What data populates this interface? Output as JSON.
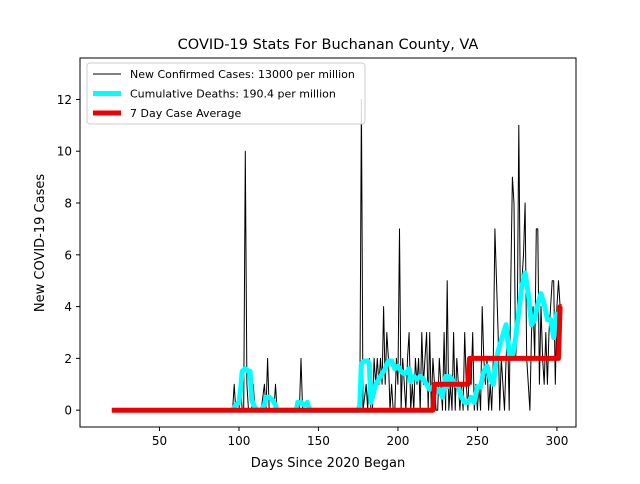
{
  "chart_data": {
    "type": "line",
    "title": "COVID-19 Stats For Buchanan County, VA",
    "xlabel": "Days Since 2020 Began",
    "ylabel": "New COVID-19 Cases",
    "xlim": [
      0,
      312
    ],
    "ylim": [
      -0.65,
      13.6
    ],
    "x_ticks": [
      50,
      100,
      150,
      200,
      250,
      300
    ],
    "y_ticks": [
      0,
      2,
      4,
      6,
      8,
      10,
      12
    ],
    "legend_position": "top-left",
    "grid": false,
    "series": [
      {
        "name": "New Confirmed Cases: 13000 per million",
        "color": "#000000",
        "stroke_width": 1,
        "points": [
          [
            20,
            0
          ],
          [
            96,
            0
          ],
          [
            97,
            1
          ],
          [
            98,
            0
          ],
          [
            100,
            0
          ],
          [
            101,
            1
          ],
          [
            102,
            0
          ],
          [
            103,
            0
          ],
          [
            104,
            10
          ],
          [
            105,
            1
          ],
          [
            106,
            0
          ],
          [
            108,
            0
          ],
          [
            109,
            1
          ],
          [
            110,
            0
          ],
          [
            112,
            0
          ],
          [
            114,
            0
          ],
          [
            116,
            1
          ],
          [
            117,
            0
          ],
          [
            118,
            2
          ],
          [
            119,
            0
          ],
          [
            120,
            0
          ],
          [
            122,
            0
          ],
          [
            123,
            1
          ],
          [
            124,
            0
          ],
          [
            126,
            0
          ],
          [
            138,
            0
          ],
          [
            139,
            2
          ],
          [
            140,
            0
          ],
          [
            142,
            0
          ],
          [
            176,
            0
          ],
          [
            177,
            12
          ],
          [
            178,
            0
          ],
          [
            180,
            1
          ],
          [
            181,
            0
          ],
          [
            182,
            2
          ],
          [
            183,
            0
          ],
          [
            184,
            0
          ],
          [
            185,
            2
          ],
          [
            186,
            1
          ],
          [
            187,
            2
          ],
          [
            188,
            1
          ],
          [
            189,
            2
          ],
          [
            190,
            1
          ],
          [
            191,
            4
          ],
          [
            192,
            1
          ],
          [
            193,
            3
          ],
          [
            194,
            2
          ],
          [
            195,
            0
          ],
          [
            196,
            1
          ],
          [
            197,
            0
          ],
          [
            198,
            0
          ],
          [
            199,
            2
          ],
          [
            200,
            1
          ],
          [
            201,
            7
          ],
          [
            202,
            0
          ],
          [
            203,
            2
          ],
          [
            204,
            1
          ],
          [
            205,
            0
          ],
          [
            206,
            2
          ],
          [
            207,
            3
          ],
          [
            208,
            0
          ],
          [
            209,
            1
          ],
          [
            210,
            0
          ],
          [
            211,
            2
          ],
          [
            212,
            1
          ],
          [
            213,
            2
          ],
          [
            214,
            0
          ],
          [
            215,
            3
          ],
          [
            216,
            1
          ],
          [
            217,
            2
          ],
          [
            218,
            3
          ],
          [
            219,
            0
          ],
          [
            220,
            3
          ],
          [
            221,
            0
          ],
          [
            222,
            2
          ],
          [
            223,
            1
          ],
          [
            224,
            0
          ],
          [
            225,
            0
          ],
          [
            226,
            2
          ],
          [
            227,
            1
          ],
          [
            228,
            0
          ],
          [
            229,
            3
          ],
          [
            230,
            0
          ],
          [
            231,
            5
          ],
          [
            232,
            0
          ],
          [
            233,
            1
          ],
          [
            234,
            0
          ],
          [
            235,
            3
          ],
          [
            236,
            0
          ],
          [
            237,
            2
          ],
          [
            238,
            1
          ],
          [
            239,
            0
          ],
          [
            240,
            1
          ],
          [
            241,
            0
          ],
          [
            242,
            3
          ],
          [
            243,
            1
          ],
          [
            244,
            0
          ],
          [
            245,
            2
          ],
          [
            246,
            1
          ],
          [
            247,
            3
          ],
          [
            248,
            0
          ],
          [
            249,
            1
          ],
          [
            250,
            0
          ],
          [
            251,
            1
          ],
          [
            252,
            0
          ],
          [
            253,
            4
          ],
          [
            254,
            2
          ],
          [
            255,
            1
          ],
          [
            256,
            2
          ],
          [
            257,
            0
          ],
          [
            258,
            1
          ],
          [
            259,
            0
          ],
          [
            260,
            2
          ],
          [
            261,
            7
          ],
          [
            262,
            5
          ],
          [
            263,
            3
          ],
          [
            264,
            0
          ],
          [
            265,
            2
          ],
          [
            266,
            1
          ],
          [
            267,
            0
          ],
          [
            268,
            2
          ],
          [
            269,
            3
          ],
          [
            270,
            0
          ],
          [
            271,
            5
          ],
          [
            272,
            9
          ],
          [
            273,
            8
          ],
          [
            274,
            2
          ],
          [
            275,
            3
          ],
          [
            276,
            11
          ],
          [
            277,
            4
          ],
          [
            278,
            5
          ],
          [
            279,
            6
          ],
          [
            280,
            8
          ],
          [
            281,
            2
          ],
          [
            282,
            1
          ],
          [
            283,
            0
          ],
          [
            284,
            3
          ],
          [
            285,
            4
          ],
          [
            286,
            2
          ],
          [
            287,
            7
          ],
          [
            288,
            7
          ],
          [
            289,
            1
          ],
          [
            290,
            4
          ],
          [
            291,
            2
          ],
          [
            292,
            1
          ],
          [
            293,
            3
          ],
          [
            294,
            1
          ],
          [
            295,
            3
          ],
          [
            296,
            4
          ],
          [
            297,
            5
          ],
          [
            298,
            5
          ],
          [
            299,
            1
          ],
          [
            300,
            4
          ],
          [
            301,
            5
          ],
          [
            302,
            4
          ],
          [
            303,
            4
          ]
        ]
      },
      {
        "name": "Cumulative Deaths: 190.4 per million",
        "color": "#00ffff",
        "stroke_width": 5,
        "points": [
          [
            96,
            0
          ],
          [
            98,
            0.2
          ],
          [
            100,
            0.3
          ],
          [
            101,
            0.8
          ],
          [
            102,
            1.5
          ],
          [
            104,
            1.6
          ],
          [
            106,
            1.5
          ],
          [
            107,
            1.5
          ],
          [
            108,
            0.4
          ],
          [
            110,
            0.1
          ],
          [
            112,
            0
          ],
          [
            114,
            0
          ],
          [
            116,
            0.2
          ],
          [
            117,
            0.5
          ],
          [
            119,
            0.5
          ],
          [
            121,
            0.4
          ],
          [
            123,
            0.2
          ],
          [
            124,
            0
          ],
          [
            136,
            0
          ],
          [
            137,
            0.3
          ],
          [
            139,
            0.3
          ],
          [
            141,
            0.2
          ],
          [
            143,
            0.3
          ],
          [
            144,
            0.1
          ],
          [
            145,
            0
          ],
          [
            175,
            0
          ],
          [
            176,
            0.2
          ],
          [
            177,
            1.8
          ],
          [
            179,
            1.9
          ],
          [
            181,
            1.9
          ],
          [
            182,
            1.8
          ],
          [
            183,
            0.3
          ],
          [
            184,
            0.5
          ],
          [
            186,
            1
          ],
          [
            188,
            1.2
          ],
          [
            190,
            1.4
          ],
          [
            192,
            1.6
          ],
          [
            194,
            1.9
          ],
          [
            196,
            1.9
          ],
          [
            198,
            1.6
          ],
          [
            200,
            1.7
          ],
          [
            202,
            1.5
          ],
          [
            204,
            1.4
          ],
          [
            206,
            1.5
          ],
          [
            207,
            1.6
          ],
          [
            208,
            1.1
          ],
          [
            210,
            1.3
          ],
          [
            212,
            1.2
          ],
          [
            214,
            1.3
          ],
          [
            216,
            1.2
          ],
          [
            218,
            1.0
          ],
          [
            220,
            0.8
          ],
          [
            222,
            0.9
          ],
          [
            224,
            0.7
          ],
          [
            226,
            0.8
          ],
          [
            228,
            0.5
          ],
          [
            230,
            1.3
          ],
          [
            231,
            0.9
          ],
          [
            232,
            1.3
          ],
          [
            234,
            1.2
          ],
          [
            236,
            1.0
          ],
          [
            238,
            0.9
          ],
          [
            240,
            0.5
          ],
          [
            242,
            0.3
          ],
          [
            244,
            0.3
          ],
          [
            246,
            0.5
          ],
          [
            248,
            0.3
          ],
          [
            250,
            0.9
          ],
          [
            252,
            0.9
          ],
          [
            254,
            1.5
          ],
          [
            256,
            1.7
          ],
          [
            258,
            1.2
          ],
          [
            260,
            1.0
          ],
          [
            262,
            2.0
          ],
          [
            264,
            2.5
          ],
          [
            266,
            2.9
          ],
          [
            268,
            3.3
          ],
          [
            270,
            2.2
          ],
          [
            272,
            2.0
          ],
          [
            274,
            2.8
          ],
          [
            276,
            3.8
          ],
          [
            278,
            4.8
          ],
          [
            280,
            5.3
          ],
          [
            282,
            4.5
          ],
          [
            284,
            3.3
          ],
          [
            286,
            3.5
          ],
          [
            288,
            4.1
          ],
          [
            290,
            4.5
          ],
          [
            292,
            4.1
          ],
          [
            294,
            3.5
          ],
          [
            296,
            3.5
          ],
          [
            298,
            2.8
          ],
          [
            300,
            3.8
          ]
        ]
      },
      {
        "name": "7 Day Case Average",
        "color": "#ee0000",
        "stroke_width": 5,
        "points": [
          [
            20,
            0
          ],
          [
            222,
            0
          ],
          [
            223,
            1
          ],
          [
            244,
            1
          ],
          [
            245,
            2
          ],
          [
            301,
            2
          ],
          [
            302,
            4
          ],
          [
            303,
            4
          ]
        ]
      }
    ]
  }
}
